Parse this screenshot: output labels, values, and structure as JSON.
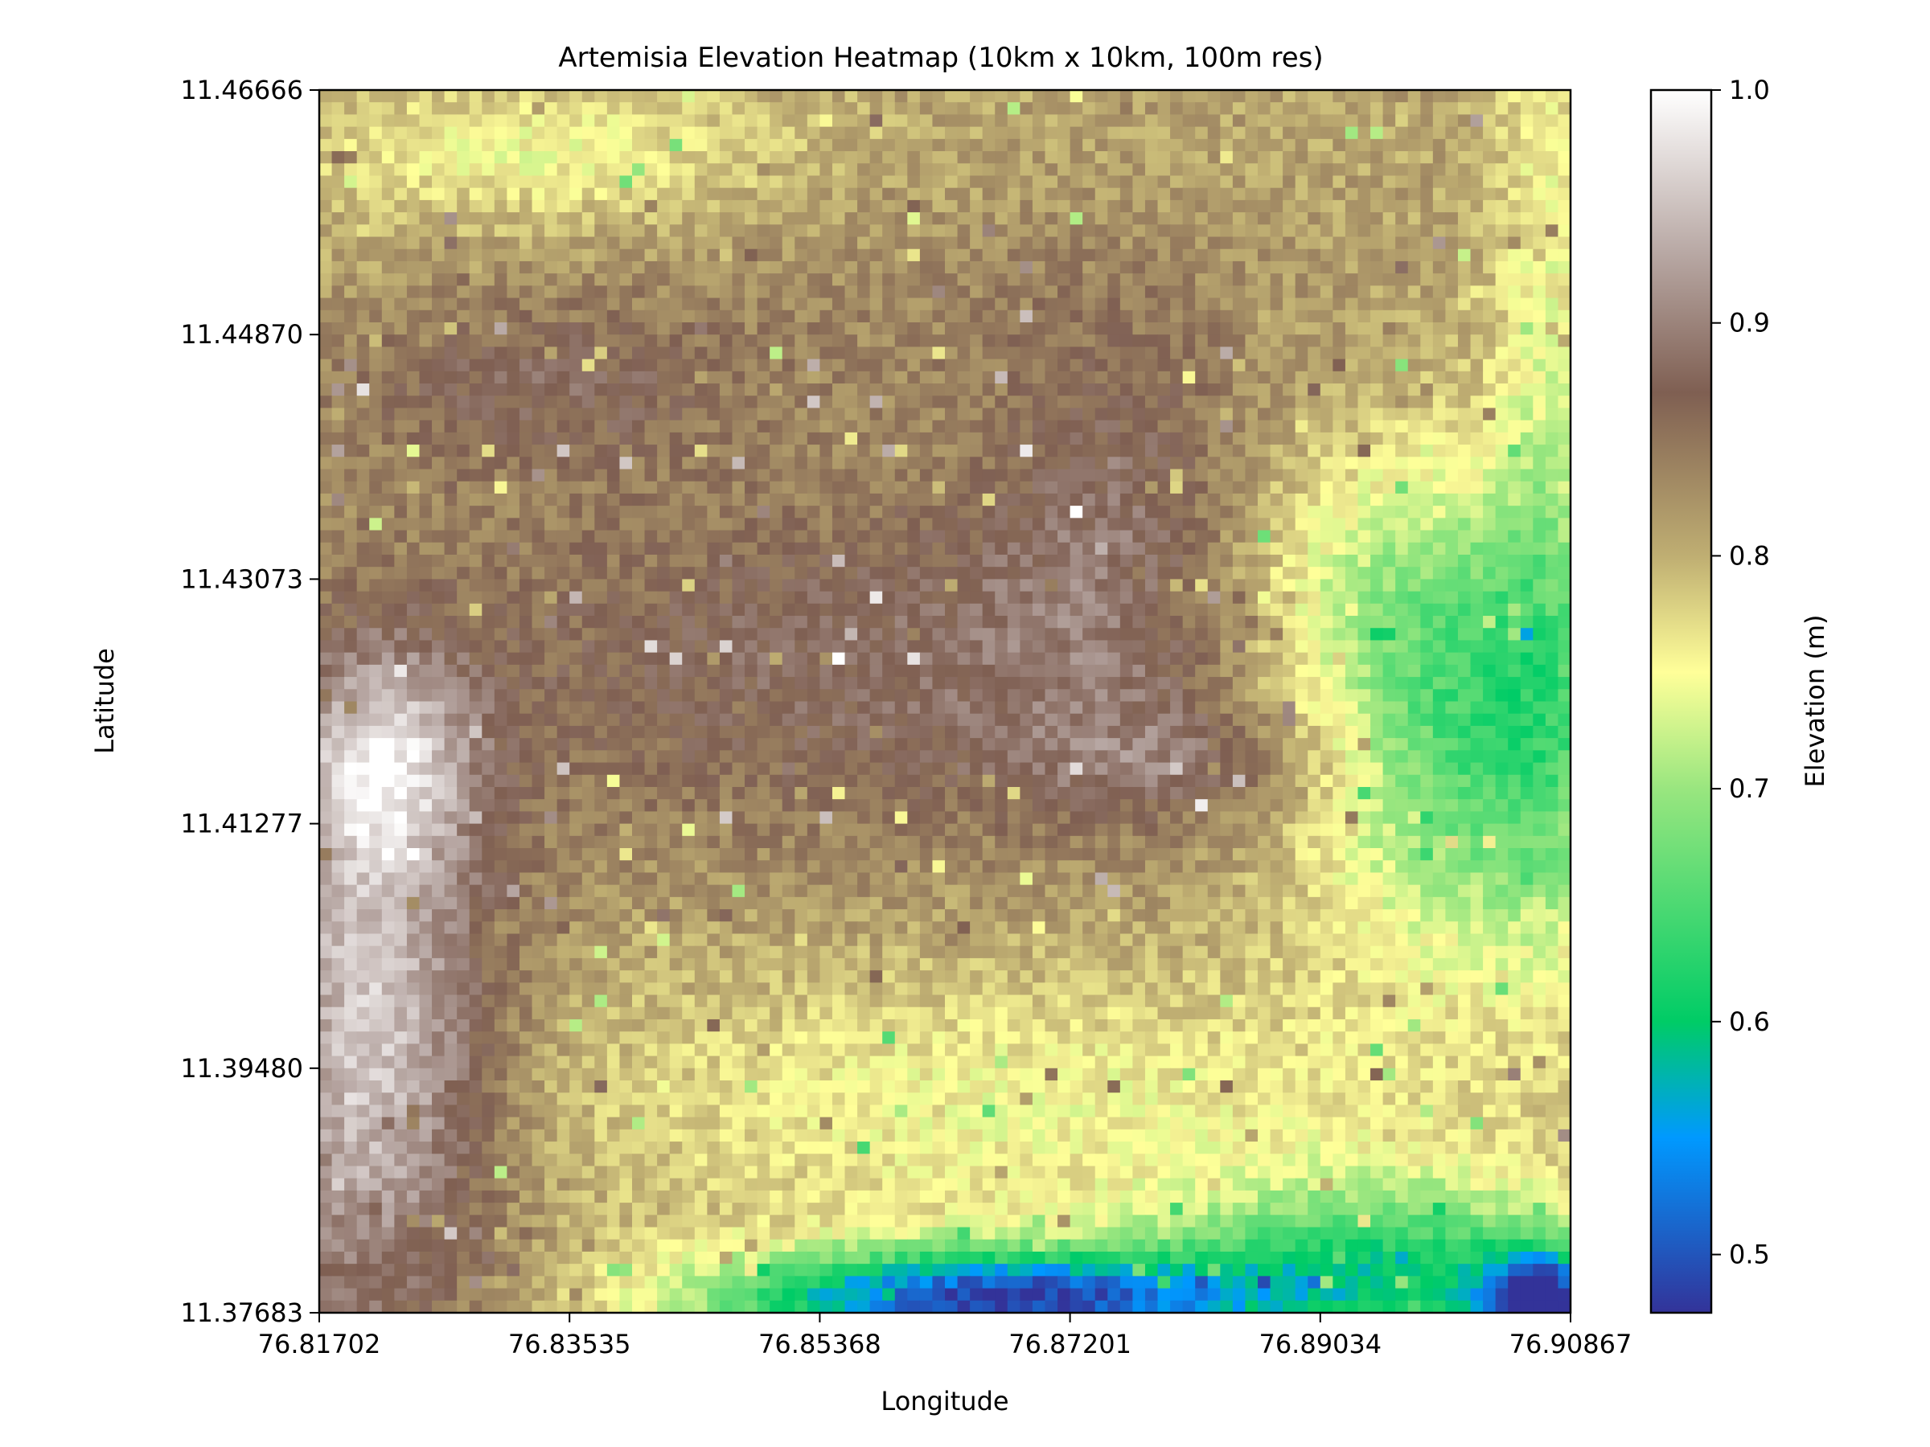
{
  "chart_data": {
    "type": "heatmap",
    "title": "Artemisia Elevation Heatmap (10km x 10km, 100m res)",
    "xlabel": "Longitude",
    "ylabel": "Latitude",
    "colorbar_label": "Elevation (m)",
    "colormap": "terrain",
    "xlim": [
      76.81702,
      76.90867
    ],
    "ylim": [
      11.37683,
      11.46666
    ],
    "x_ticks": [
      "76.81702",
      "76.83535",
      "76.85368",
      "76.87201",
      "76.89034",
      "76.90867"
    ],
    "y_ticks": [
      "11.46666",
      "11.44870",
      "11.43073",
      "11.41277",
      "11.39480",
      "11.37683"
    ],
    "colorbar_range": [
      0.475,
      1.0
    ],
    "colorbar_ticks": [
      "0.5",
      "0.6",
      "0.7",
      "0.8",
      "0.9",
      "1.0"
    ],
    "colorbar_tick_values": [
      0.5,
      0.6,
      0.7,
      0.8,
      0.9,
      1.0
    ],
    "grid_cells": "100 x 100",
    "colorscale_stops": [
      {
        "value": 0.475,
        "color": "#333399"
      },
      {
        "value": 0.55,
        "color": "#0099ff"
      },
      {
        "value": 0.6,
        "color": "#00cc66"
      },
      {
        "value": 0.7,
        "color": "#99e67f"
      },
      {
        "value": 0.75,
        "color": "#ffff99"
      },
      {
        "value": 0.8,
        "color": "#bfae72"
      },
      {
        "value": 0.87,
        "color": "#7f5f52"
      },
      {
        "value": 0.93,
        "color": "#b8a8a4"
      },
      {
        "value": 1.0,
        "color": "#ffffff"
      }
    ]
  }
}
